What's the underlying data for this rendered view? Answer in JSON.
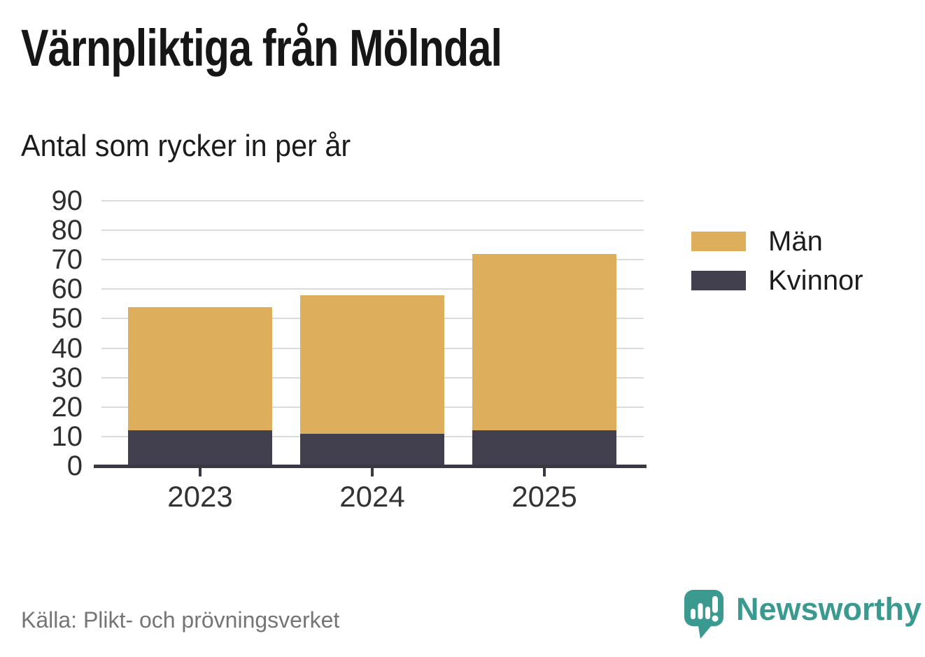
{
  "header": {
    "title": "Värnpliktiga från Mölndal",
    "subtitle": "Antal som rycker in per år"
  },
  "chart_data": {
    "type": "bar",
    "stacked": true,
    "title": "Värnpliktiga från Mölndal",
    "subtitle": "Antal som rycker in per år",
    "categories": [
      "2023",
      "2024",
      "2025"
    ],
    "series": [
      {
        "name": "Män",
        "color": "#DDAE5B",
        "values": [
          42,
          47,
          60
        ]
      },
      {
        "name": "Kvinnor",
        "color": "#423F4F",
        "values": [
          12,
          11,
          12
        ]
      }
    ],
    "stack_bottom_to_top": [
      "Kvinnor",
      "Män"
    ],
    "stacked_totals": [
      54,
      58,
      72
    ],
    "xlabel": "",
    "ylabel": "",
    "ylim": [
      0,
      90
    ],
    "yticks": [
      0,
      10,
      20,
      30,
      40,
      50,
      60,
      70,
      80,
      90
    ],
    "grid": "horizontal",
    "legend_position": "right"
  },
  "footer": {
    "source": "Källa: Plikt- och prövningsverket",
    "brand": "Newsworthy",
    "brand_color": "#3B9A90"
  },
  "colors": {
    "grid": "#dbdbdb",
    "axis": "#3a3842",
    "tick_text": "#2e2e2e"
  }
}
